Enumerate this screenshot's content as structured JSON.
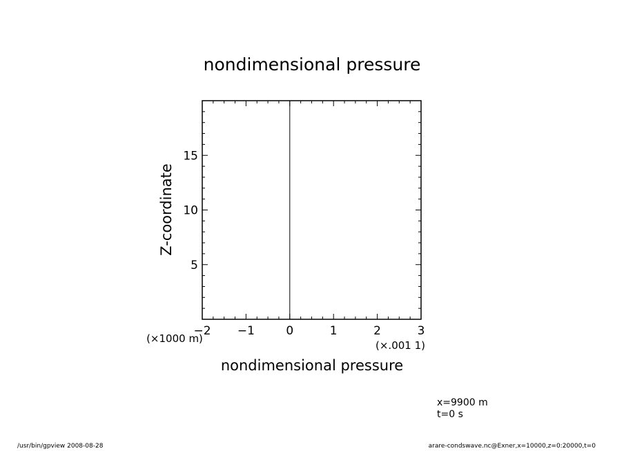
{
  "chart_data": {
    "type": "line",
    "title": "nondimensional pressure",
    "xlabel": "nondimensional pressure",
    "ylabel": "Z-coordinate",
    "x_unit_label": "(×.001 1)",
    "y_unit_label": "(×1000 m)",
    "xlim": [
      -2,
      3
    ],
    "ylim": [
      0,
      20
    ],
    "x_ticks": [
      "-2",
      "-1",
      "0",
      "1",
      "2",
      "3"
    ],
    "y_ticks": [
      "5",
      "10",
      "15"
    ],
    "series": [
      {
        "x": [
          0,
          0
        ],
        "y": [
          0,
          20
        ],
        "color": "#000000"
      }
    ],
    "grid": false
  },
  "info": {
    "line1": "x=9900  m",
    "line2": "t=0  s"
  },
  "footer": {
    "left": "/usr/bin/gpview   2008-08-28",
    "right": "arare-condswave.nc@Exner,x=10000,z=0:20000,t=0"
  }
}
